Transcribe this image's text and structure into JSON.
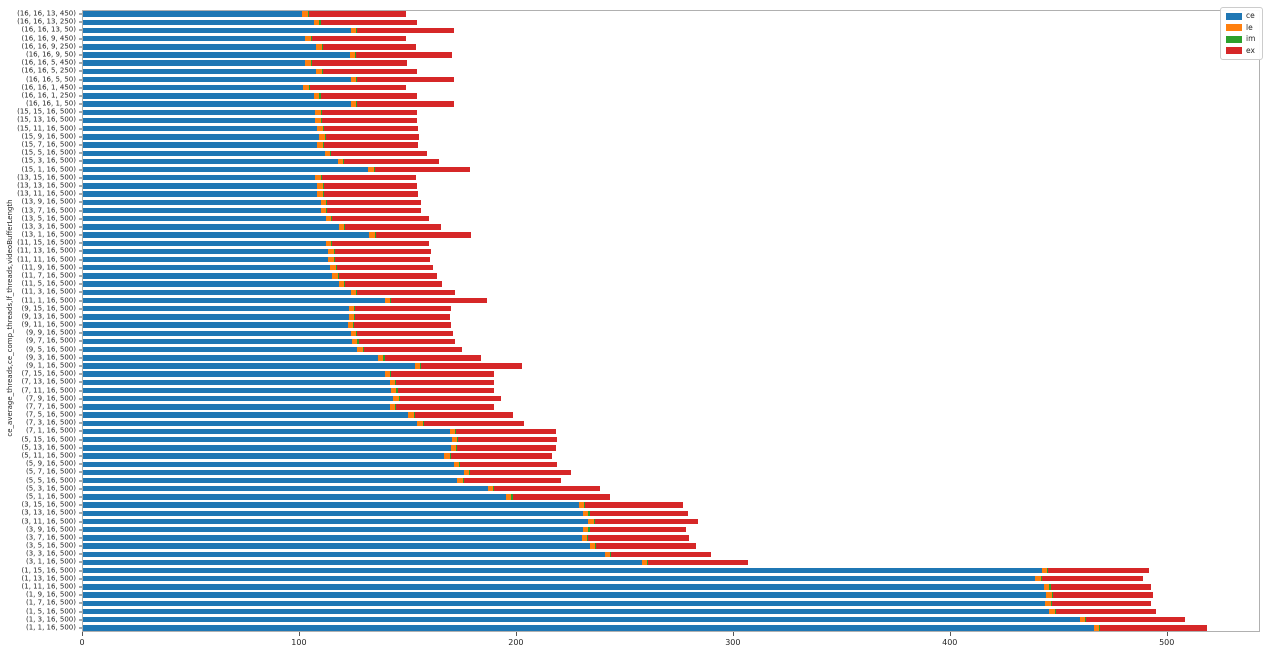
{
  "chart_data": {
    "type": "bar",
    "orientation": "horizontal",
    "stacked": true,
    "title": "",
    "xlabel": "",
    "ylabel": "ce_average_threads,ce_comp_threads,lf_threads,videoBufferLength",
    "xlim": [
      0,
      543
    ],
    "xticks": [
      0,
      100,
      200,
      300,
      400,
      500
    ],
    "xtick_labels": [
      "0",
      "100",
      "200",
      "300",
      "400",
      "500"
    ],
    "grid": false,
    "legend": {
      "position": "upper right",
      "entries": [
        {
          "name": "ce",
          "color": "#1f77b4"
        },
        {
          "name": "le",
          "color": "#ff7f0e"
        },
        {
          "name": "im",
          "color": "#2ca02c"
        },
        {
          "name": "ex",
          "color": "#d62728"
        }
      ]
    },
    "categories": [
      "(16, 16, 13, 450)",
      "(16, 16, 13, 250)",
      "(16, 16, 13, 50)",
      "(16, 16, 9, 450)",
      "(16, 16, 9, 250)",
      "(16, 16, 9, 50)",
      "(16, 16, 5, 450)",
      "(16, 16, 5, 250)",
      "(16, 16, 5, 50)",
      "(16, 16, 1, 450)",
      "(16, 16, 1, 250)",
      "(16, 16, 1, 50)",
      "(15, 15, 16, 500)",
      "(15, 13, 16, 500)",
      "(15, 11, 16, 500)",
      "(15, 9, 16, 500)",
      "(15, 7, 16, 500)",
      "(15, 5, 16, 500)",
      "(15, 3, 16, 500)",
      "(15, 1, 16, 500)",
      "(13, 15, 16, 500)",
      "(13, 13, 16, 500)",
      "(13, 11, 16, 500)",
      "(13, 9, 16, 500)",
      "(13, 7, 16, 500)",
      "(13, 5, 16, 500)",
      "(13, 3, 16, 500)",
      "(13, 1, 16, 500)",
      "(11, 15, 16, 500)",
      "(11, 13, 16, 500)",
      "(11, 11, 16, 500)",
      "(11, 9, 16, 500)",
      "(11, 7, 16, 500)",
      "(11, 5, 16, 500)",
      "(11, 3, 16, 500)",
      "(11, 1, 16, 500)",
      "(9, 15, 16, 500)",
      "(9, 13, 16, 500)",
      "(9, 11, 16, 500)",
      "(9, 9, 16, 500)",
      "(9, 7, 16, 500)",
      "(9, 5, 16, 500)",
      "(9, 3, 16, 500)",
      "(9, 1, 16, 500)",
      "(7, 15, 16, 500)",
      "(7, 13, 16, 500)",
      "(7, 11, 16, 500)",
      "(7, 9, 16, 500)",
      "(7, 7, 16, 500)",
      "(7, 5, 16, 500)",
      "(7, 3, 16, 500)",
      "(7, 1, 16, 500)",
      "(5, 15, 16, 500)",
      "(5, 13, 16, 500)",
      "(5, 11, 16, 500)",
      "(5, 9, 16, 500)",
      "(5, 7, 16, 500)",
      "(5, 5, 16, 500)",
      "(5, 3, 16, 500)",
      "(5, 1, 16, 500)",
      "(3, 15, 16, 500)",
      "(3, 13, 16, 500)",
      "(3, 11, 16, 500)",
      "(3, 9, 16, 500)",
      "(3, 7, 16, 500)",
      "(3, 5, 16, 500)",
      "(3, 3, 16, 500)",
      "(3, 1, 16, 500)",
      "(1, 15, 16, 500)",
      "(1, 13, 16, 500)",
      "(1, 11, 16, 500)",
      "(1, 9, 16, 500)",
      "(1, 7, 16, 500)",
      "(1, 5, 16, 500)",
      "(1, 3, 16, 500)",
      "(1, 1, 16, 500)"
    ],
    "series": [
      {
        "name": "ce",
        "color": "#1f77b4",
        "values": [
          101,
          106.5,
          123.5,
          102.5,
          107.5,
          123,
          102.5,
          107.5,
          123.5,
          101.5,
          106.5,
          123.5,
          107,
          107,
          108,
          109,
          108,
          111.5,
          117.5,
          131.5,
          107,
          108,
          108,
          109.5,
          109.5,
          112,
          118,
          132,
          112,
          113,
          113,
          114,
          115,
          118,
          123.5,
          139,
          122.5,
          122.5,
          122,
          123.5,
          124,
          126.5,
          136,
          153,
          139,
          141.5,
          142,
          143,
          141.5,
          150,
          154,
          169,
          170,
          169.5,
          166.5,
          171,
          175.5,
          172.5,
          186.5,
          195,
          228.5,
          230.5,
          233,
          230.5,
          230,
          233.5,
          240.5,
          257.5,
          442,
          439,
          443,
          444,
          443.5,
          445.5,
          459.5,
          466
        ]
      },
      {
        "name": "le",
        "color": "#ff7f0e",
        "values": [
          2.5,
          2.5,
          2.5,
          2.5,
          2.5,
          2.5,
          2.5,
          2.5,
          2.5,
          2.5,
          2.5,
          2.5,
          2.5,
          2.5,
          2.5,
          2.5,
          2.5,
          2.5,
          2.5,
          2.5,
          2.5,
          2.5,
          2.5,
          2.5,
          2.5,
          2.5,
          2.5,
          2.5,
          2.5,
          2.5,
          2.5,
          2.5,
          2.5,
          2.5,
          2.5,
          2.5,
          2.5,
          2.5,
          2.5,
          2.5,
          2.5,
          2.5,
          2.5,
          2.5,
          2.5,
          2.5,
          2.5,
          2.5,
          2.5,
          2.5,
          2.5,
          2.5,
          2.5,
          2.5,
          2.5,
          2.5,
          2.5,
          2.5,
          2.5,
          2.5,
          2.5,
          2.5,
          2.5,
          2.5,
          2.5,
          2.5,
          2.5,
          2.5,
          2.5,
          2.5,
          2.5,
          2.5,
          2.5,
          2.5,
          2.5,
          2.5
        ]
      },
      {
        "name": "im",
        "color": "#2ca02c",
        "values": [
          0.5,
          0.5,
          0.5,
          0.5,
          0.5,
          0.5,
          0.5,
          0.5,
          0.5,
          0.5,
          0.5,
          0.5,
          0.5,
          0.5,
          0.5,
          0.5,
          0.5,
          0.5,
          0.5,
          0.5,
          0.5,
          0.5,
          0.5,
          0.5,
          0.5,
          0.5,
          0.5,
          0.5,
          0.5,
          0.5,
          0.5,
          0.5,
          0.5,
          0.5,
          0.5,
          0.5,
          0.5,
          0.5,
          0.5,
          0.5,
          0.5,
          0.5,
          0.5,
          0.5,
          0.5,
          0.5,
          0.5,
          0.5,
          0.5,
          0.5,
          0.5,
          0.5,
          0.5,
          0.5,
          0.5,
          0.5,
          0.5,
          0.5,
          0.5,
          0.5,
          0.5,
          0.5,
          0.5,
          0.5,
          0.5,
          0.5,
          0.5,
          0.5,
          0.5,
          0.5,
          0.5,
          0.5,
          0.5,
          0.5,
          0.5,
          0.5
        ]
      },
      {
        "name": "ex",
        "color": "#d62728",
        "values": [
          45,
          44.5,
          44.5,
          43.5,
          43,
          44,
          44,
          43.5,
          44.5,
          44.5,
          44.5,
          44.5,
          44,
          44,
          43.5,
          43,
          43.5,
          44,
          43.5,
          44,
          43.5,
          43,
          43.5,
          43.5,
          43.5,
          44.5,
          44,
          44,
          44.5,
          44.5,
          44,
          44.5,
          45,
          44.5,
          45,
          44,
          44,
          43.5,
          44.5,
          44,
          44.5,
          45,
          44.5,
          46.5,
          47.5,
          45,
          44.5,
          46.5,
          45,
          45,
          46.5,
          46,
          45.5,
          45.5,
          46.5,
          44.5,
          46.5,
          45,
          49,
          45,
          45,
          45.5,
          47.5,
          44.5,
          46.5,
          46,
          46,
          46,
          46.5,
          46.5,
          46.5,
          46,
          46,
          46,
          45.5,
          49
        ]
      }
    ]
  }
}
